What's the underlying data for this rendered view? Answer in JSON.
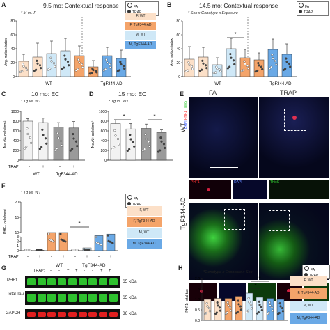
{
  "panels": {
    "A": {
      "letter": "A",
      "title": "9.5 mo: Contextual response",
      "note": "* M vs. F",
      "ylabel": "Avg. motion index",
      "yticks": [
        "0",
        "20",
        "40",
        "60",
        "80"
      ],
      "groups": [
        "WT",
        "TgF344-AD"
      ]
    },
    "B": {
      "letter": "B",
      "title": "14.5 mo: Contextual response",
      "note": "* Sex x Genotype x Exposure",
      "ylabel": "Avg. motion index",
      "yticks": [
        "0",
        "20",
        "40",
        "60",
        "80"
      ],
      "groups": [
        "WT",
        "TgF344-AD"
      ],
      "sig": "*"
    },
    "C": {
      "letter": "C",
      "title": "10 mo: EC",
      "note": "* Tg vs. WT",
      "ylabel": "NeuN+ cells/mm²",
      "yticks": [
        "0",
        "200",
        "400",
        "600",
        "800",
        "1000"
      ],
      "groups": [
        "WT",
        "TgF344-AD"
      ],
      "trap_label": "TRAP:",
      "trap_signs": [
        "-",
        "+",
        "-",
        "+"
      ]
    },
    "D": {
      "letter": "D",
      "title": "15 mo: EC",
      "note": "* Tg vs. WT",
      "ylabel": "NeuN+ cells/mm²",
      "yticks": [
        "0",
        "200",
        "400",
        "600",
        "800",
        "1000"
      ],
      "groups": [
        "WT",
        "TgF344-AD"
      ],
      "sig1": "*",
      "sig2": "*"
    },
    "E": {
      "letter": "E",
      "col_fa": "FA",
      "col_trap": "TRAP",
      "row_wt": "WT",
      "row_tg": "TgF344-AD",
      "stain_left": "DAPI",
      "stain_phf1": "PHF1",
      "stain_thios": "ThioS",
      "inset_phf1": "PHF1",
      "inset_dapi": "DAPI",
      "inset_thios": "ThioS"
    },
    "F": {
      "letter": "F",
      "note": "* Tg vs. WT",
      "ylabel": "PHF+ cells/mm²",
      "yticks": [
        "0",
        "1",
        "2",
        "3",
        "10",
        "15",
        "20"
      ],
      "trap_label": "TRAP:",
      "trap_signs": [
        "-",
        "+",
        "-",
        "+"
      ],
      "groups": [
        "WT",
        "TgF344-AD"
      ],
      "sig": "*"
    },
    "G": {
      "letter": "G",
      "trap_label": "TRAP:",
      "groups": [
        "WT",
        "TgF344-AD"
      ],
      "lane_signs": [
        "-",
        "-",
        "+",
        "+",
        "-",
        "-",
        "+",
        "+"
      ],
      "blots": [
        {
          "name": "PHF1",
          "kda": "65 kDa"
        },
        {
          "name": "Total Tau",
          "kda": "65 kDa"
        },
        {
          "name": "GAPDH",
          "kda": "36 kDa"
        }
      ]
    },
    "H": {
      "letter": "H",
      "note": "*Genotype x Exposure x Sex",
      "ylabel": "PHF1: total tau",
      "yticks": [
        "0.0",
        "0.5",
        "1.0",
        "1.5",
        "2.0"
      ],
      "sig1": "*",
      "sig2": "*"
    }
  },
  "legend": {
    "fa": "FA",
    "trap": "TRAP",
    "fwt": "F, WT",
    "ftg": "F, TgF344-AD",
    "mwt": "M, WT",
    "mtg": "M, TgF344-AD"
  },
  "colors": {
    "f_wt": "#fce0c8",
    "f_tg": "#f4a46a",
    "m_wt": "#cfe8f7",
    "m_tg": "#6aa9e6",
    "wt_gray": "#f2f2f2",
    "tg_gray": "#9a9a9a"
  },
  "chart_data": [
    {
      "id": "A",
      "type": "bar",
      "ylim": [
        0,
        80
      ],
      "categories": [
        "F WT FA",
        "F WT TRAP",
        "M WT FA",
        "M WT TRAP",
        "F Tg FA",
        "F Tg TRAP",
        "M Tg FA",
        "M Tg TRAP"
      ],
      "values": [
        22,
        28,
        33,
        37,
        30,
        14,
        30,
        26
      ],
      "errors": [
        10,
        20,
        18,
        18,
        14,
        9,
        12,
        12
      ]
    },
    {
      "id": "B",
      "type": "bar",
      "ylim": [
        0,
        80
      ],
      "categories": [
        "F WT FA",
        "F WT TRAP",
        "M WT FA",
        "M WT TRAP",
        "F Tg FA",
        "F Tg TRAP",
        "M Tg FA",
        "M Tg TRAP"
      ],
      "values": [
        25,
        28,
        17,
        40,
        27,
        24,
        39,
        32
      ],
      "errors": [
        18,
        14,
        10,
        15,
        12,
        10,
        15,
        15
      ]
    },
    {
      "id": "C",
      "type": "bar",
      "ylim": [
        0,
        1000
      ],
      "categories": [
        "WT FA",
        "WT TRAP",
        "Tg FA",
        "Tg TRAP"
      ],
      "values": [
        800,
        770,
        680,
        660
      ],
      "errors": [
        50,
        90,
        90,
        130
      ]
    },
    {
      "id": "D",
      "type": "bar",
      "ylim": [
        0,
        1000
      ],
      "categories": [
        "WT FA",
        "WT TRAP",
        "Tg FA",
        "Tg TRAP"
      ],
      "values": [
        750,
        640,
        650,
        570
      ],
      "errors": [
        80,
        110,
        90,
        50
      ]
    },
    {
      "id": "F",
      "type": "bar",
      "categories": [
        "F WT FA",
        "F WT TRAP",
        "F Tg FA",
        "F Tg TRAP",
        "M WT FA",
        "M WT TRAP",
        "M Tg FA",
        "M Tg TRAP"
      ],
      "values": [
        0.05,
        0.1,
        10,
        10,
        0.05,
        0.6,
        9,
        9.5
      ]
    },
    {
      "id": "H",
      "type": "bar",
      "ylim": [
        0,
        2.0
      ],
      "categories": [
        "F WT FA",
        "F WT TRAP",
        "F Tg FA",
        "F Tg TRAP",
        "M WT FA",
        "M WT TRAP",
        "M Tg FA",
        "M Tg TRAP"
      ],
      "values": [
        1.0,
        1.05,
        1.05,
        1.15,
        1.3,
        1.1,
        1.05,
        1.0
      ]
    }
  ]
}
